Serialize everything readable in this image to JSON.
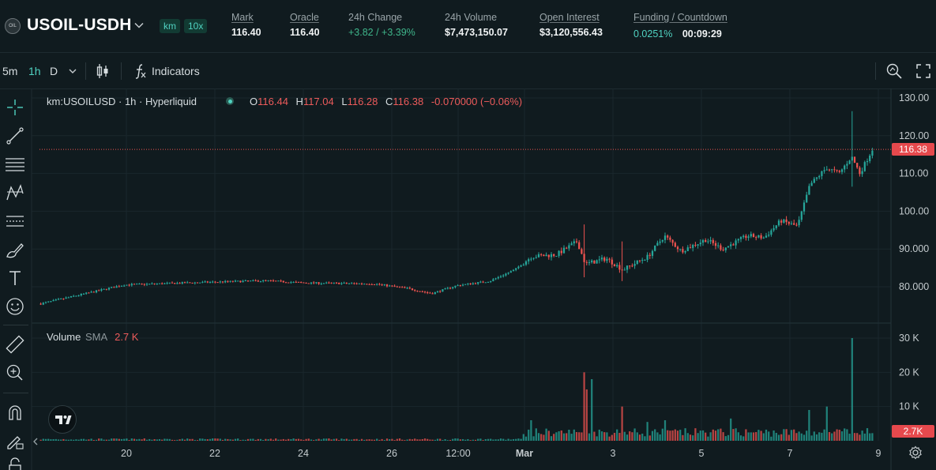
{
  "header": {
    "pair": "USOIL-USDH",
    "logo_text": "OIL",
    "badge_dex": "km",
    "badge_leverage": "10x",
    "stats": [
      {
        "label": "Mark",
        "value": "116.40",
        "underline": true,
        "color": "white"
      },
      {
        "label": "Oracle",
        "value": "116.40",
        "underline": true,
        "color": "white"
      },
      {
        "label": "24h Change",
        "value": "+3.82 / +3.39%",
        "underline": false,
        "color": "green"
      },
      {
        "label": "24h Volume",
        "value": "$7,473,150.07",
        "underline": false,
        "color": "white"
      },
      {
        "label": "Open Interest",
        "value": "$3,120,556.43",
        "underline": true,
        "color": "white"
      },
      {
        "label": "Funding / Countdown",
        "value": "0.0251%",
        "value2": "00:09:29",
        "underline": true,
        "color": "teal"
      }
    ]
  },
  "toolbar": {
    "intervals": [
      "5m",
      "1h",
      "D"
    ],
    "active_interval": "1h",
    "indicators_label": "Indicators"
  },
  "legend": {
    "symbol": "km:USOILUSD · 1h · Hyperliquid",
    "o_label": "O",
    "o": "116.44",
    "h_label": "H",
    "h": "117.04",
    "l_label": "L",
    "l": "116.28",
    "c_label": "C",
    "c": "116.38",
    "change": "-0.070000 (−0.06%)"
  },
  "volume_legend": {
    "label": "Volume",
    "sma": "SMA",
    "value": "2.7 K"
  },
  "chart_data": {
    "type": "candlestick",
    "price_axis": {
      "ticks": [
        "130.00",
        "120.00",
        "110.00",
        "100.00",
        "90.000",
        "80.000"
      ],
      "min": 75,
      "max": 132
    },
    "volume_axis": {
      "ticks": [
        "30 K",
        "20 K",
        "10 K"
      ],
      "max": 32000
    },
    "x_ticks": [
      "20",
      "22",
      "24",
      "26",
      "12:00",
      "Mar",
      "3",
      "5",
      "7",
      "9"
    ],
    "last_price": "116.38",
    "last_volume": "2.7K",
    "colors": {
      "up": "#26a69a",
      "down": "#ef5350"
    },
    "keypoints": [
      {
        "t": 0,
        "p": 75.5
      },
      {
        "t": 0.05,
        "p": 78.0
      },
      {
        "t": 0.1,
        "p": 80.5
      },
      {
        "t": 0.2,
        "p": 81.2
      },
      {
        "t": 0.27,
        "p": 81.6
      },
      {
        "t": 0.32,
        "p": 81.0
      },
      {
        "t": 0.4,
        "p": 80.8
      },
      {
        "t": 0.44,
        "p": 79.6
      },
      {
        "t": 0.47,
        "p": 78.2
      },
      {
        "t": 0.5,
        "p": 80.3
      },
      {
        "t": 0.54,
        "p": 81.5
      },
      {
        "t": 0.57,
        "p": 84.5
      },
      {
        "t": 0.59,
        "p": 88.0
      },
      {
        "t": 0.62,
        "p": 88.5
      },
      {
        "t": 0.645,
        "p": 92.0
      },
      {
        "t": 0.655,
        "p": 86.0
      },
      {
        "t": 0.68,
        "p": 87.5
      },
      {
        "t": 0.7,
        "p": 84.5
      },
      {
        "t": 0.73,
        "p": 88.0
      },
      {
        "t": 0.75,
        "p": 93.5
      },
      {
        "t": 0.77,
        "p": 89.5
      },
      {
        "t": 0.8,
        "p": 92.5
      },
      {
        "t": 0.82,
        "p": 90.0
      },
      {
        "t": 0.85,
        "p": 93.5
      },
      {
        "t": 0.87,
        "p": 93.0
      },
      {
        "t": 0.89,
        "p": 97.5
      },
      {
        "t": 0.91,
        "p": 96.0
      },
      {
        "t": 0.925,
        "p": 107.0
      },
      {
        "t": 0.945,
        "p": 111.5
      },
      {
        "t": 0.96,
        "p": 110.0
      },
      {
        "t": 0.975,
        "p": 114.5
      },
      {
        "t": 0.985,
        "p": 110.0
      },
      {
        "t": 1.0,
        "p": 116.4
      }
    ],
    "spikes": [
      {
        "t": 0.977,
        "high": 126.5,
        "low": 106.5
      },
      {
        "t": 0.652,
        "high": 96.5,
        "low": 82.5
      },
      {
        "t": 0.7,
        "high": 92.0,
        "low": 81.5
      }
    ],
    "volume_spikes": [
      {
        "t": 0.977,
        "v": 30000
      },
      {
        "t": 0.655,
        "v": 20000
      },
      {
        "t": 0.658,
        "v": 15000
      },
      {
        "t": 0.662,
        "v": 18000
      },
      {
        "t": 0.7,
        "v": 10000
      },
      {
        "t": 0.925,
        "v": 9000
      },
      {
        "t": 0.945,
        "v": 10000
      },
      {
        "t": 0.59,
        "v": 6000
      },
      {
        "t": 0.73,
        "v": 5500
      },
      {
        "t": 0.75,
        "v": 6000
      },
      {
        "t": 0.83,
        "v": 6500
      }
    ]
  }
}
